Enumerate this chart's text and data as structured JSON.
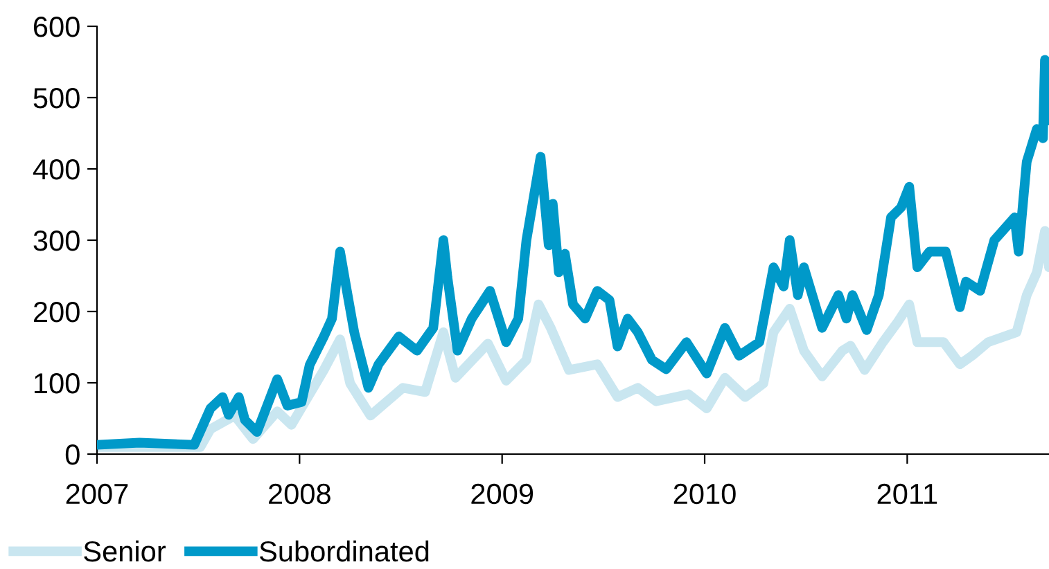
{
  "chart_data": {
    "type": "line",
    "xlim": [
      2007,
      2011.7
    ],
    "xticks": [
      2007,
      2008,
      2009,
      2010,
      2011
    ],
    "ylim": [
      0,
      600
    ],
    "yticks": [
      0,
      100,
      200,
      300,
      400,
      500,
      600
    ],
    "grid": false,
    "legend": "bottom left",
    "marker": "none",
    "line_style": "solid",
    "series": [
      {
        "name": "Senior",
        "color": "#c9e6f0",
        "x": [
          2007.0,
          2007.51,
          2007.56,
          2007.68,
          2007.77,
          2007.89,
          2007.96,
          2008.12,
          2008.2,
          2008.25,
          2008.35,
          2008.51,
          2008.62,
          2008.71,
          2008.77,
          2008.93,
          2009.02,
          2009.12,
          2009.18,
          2009.24,
          2009.33,
          2009.47,
          2009.57,
          2009.67,
          2009.76,
          2009.92,
          2010.01,
          2010.1,
          2010.2,
          2010.29,
          2010.34,
          2010.42,
          2010.49,
          2010.58,
          2010.68,
          2010.72,
          2010.79,
          2010.88,
          2010.95,
          2011.01,
          2011.05,
          2011.18,
          2011.26,
          2011.32,
          2011.4,
          2011.54,
          2011.59,
          2011.64,
          2011.68,
          2011.7
        ],
        "values": [
          10,
          10,
          35,
          54,
          21,
          60,
          41,
          118,
          161,
          99,
          54,
          93,
          87,
          171,
          107,
          155,
          103,
          132,
          210,
          177,
          118,
          126,
          80,
          93,
          74,
          84,
          64,
          107,
          80,
          99,
          171,
          204,
          145,
          109,
          145,
          152,
          118,
          157,
          184,
          210,
          157,
          157,
          126,
          138,
          157,
          171,
          223,
          255,
          313,
          262
        ]
      },
      {
        "name": "Subordinated",
        "color": "#0099c9",
        "x": [
          2007.0,
          2007.21,
          2007.48,
          2007.56,
          2007.62,
          2007.65,
          2007.7,
          2007.73,
          2007.79,
          2007.84,
          2007.89,
          2007.94,
          2008.01,
          2008.05,
          2008.12,
          2008.16,
          2008.2,
          2008.23,
          2008.27,
          2008.34,
          2008.39,
          2008.49,
          2008.58,
          2008.66,
          2008.71,
          2008.73,
          2008.78,
          2008.85,
          2008.94,
          2009.02,
          2009.08,
          2009.12,
          2009.19,
          2009.23,
          2009.25,
          2009.28,
          2009.31,
          2009.35,
          2009.41,
          2009.47,
          2009.53,
          2009.57,
          2009.62,
          2009.67,
          2009.74,
          2009.81,
          2009.91,
          2010.01,
          2010.1,
          2010.17,
          2010.27,
          2010.34,
          2010.39,
          2010.42,
          2010.46,
          2010.49,
          2010.58,
          2010.66,
          2010.7,
          2010.73,
          2010.8,
          2010.86,
          2010.92,
          2010.97,
          2011.01,
          2011.05,
          2011.11,
          2011.19,
          2011.26,
          2011.29,
          2011.36,
          2011.43,
          2011.53,
          2011.55,
          2011.59,
          2011.64,
          2011.67,
          2011.68,
          2011.7
        ],
        "values": [
          13,
          16,
          13,
          64,
          80,
          55,
          80,
          48,
          31,
          68,
          105,
          68,
          73,
          125,
          165,
          190,
          284,
          235,
          171,
          93,
          126,
          165,
          145,
          177,
          300,
          248,
          145,
          190,
          229,
          157,
          190,
          300,
          417,
          293,
          351,
          255,
          281,
          210,
          190,
          229,
          216,
          151,
          190,
          171,
          132,
          119,
          157,
          113,
          177,
          138,
          157,
          262,
          235,
          300,
          223,
          262,
          177,
          223,
          190,
          223,
          174,
          223,
          332,
          346,
          375,
          262,
          284,
          284,
          206,
          242,
          229,
          300,
          332,
          284,
          410,
          456,
          443,
          553,
          468
        ]
      }
    ]
  }
}
